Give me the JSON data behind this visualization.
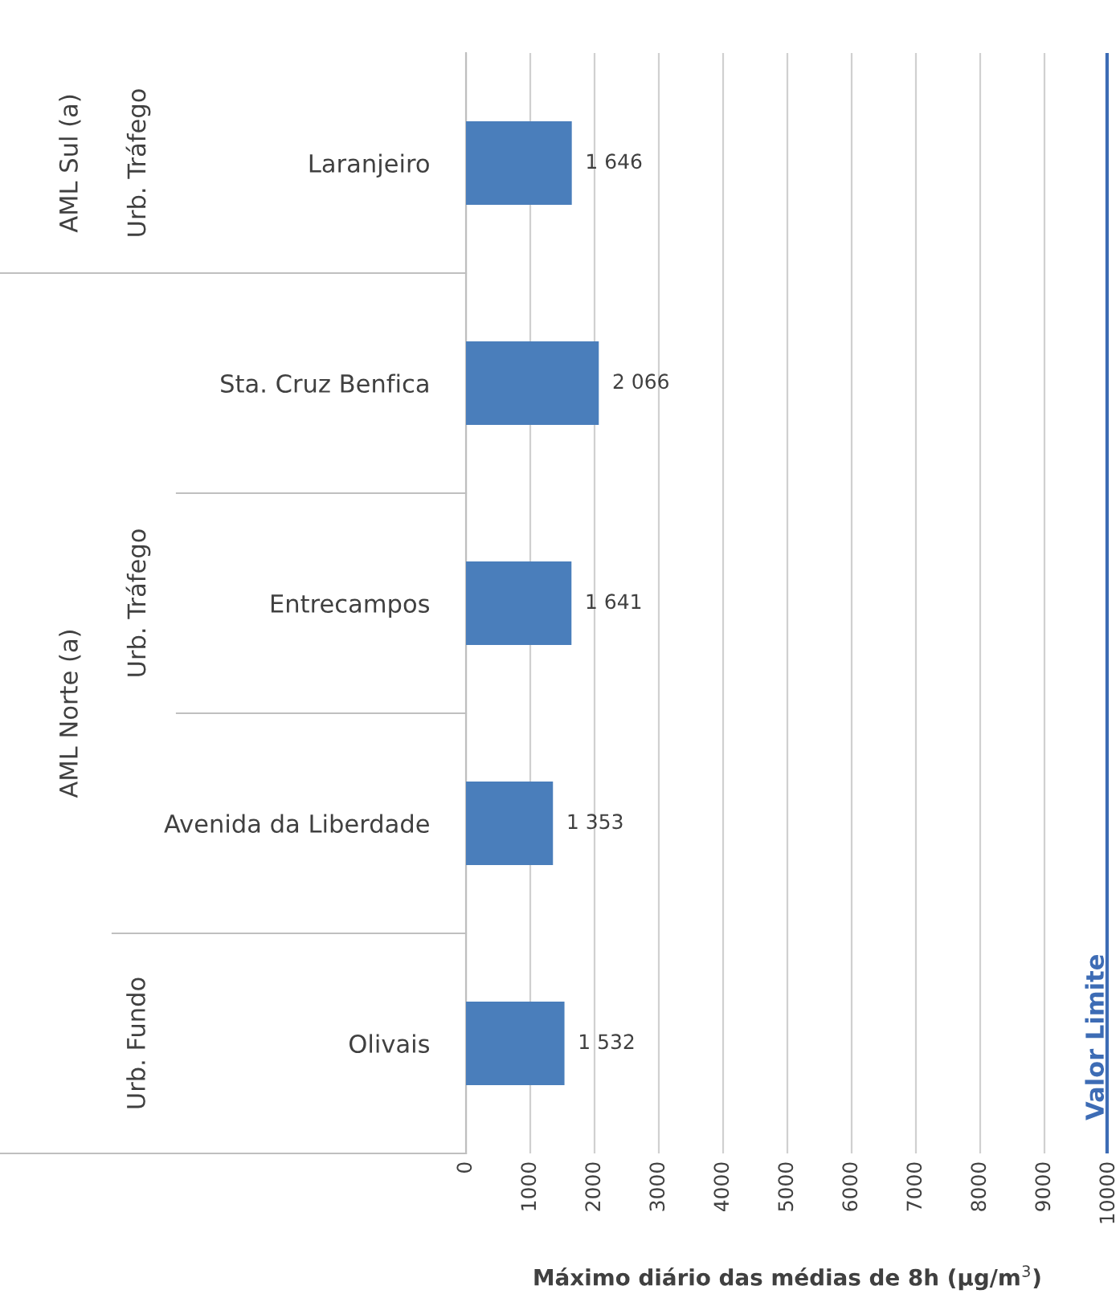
{
  "chart_data": {
    "type": "bar",
    "orientation": "horizontal",
    "categories": [
      "Laranjeiro",
      "Sta. Cruz Benfica",
      "Entrecampos",
      "Avenida da Liberdade",
      "Olivais"
    ],
    "values": [
      1646,
      2066,
      1641,
      1353,
      1532
    ],
    "value_labels": [
      "1 646",
      "2 066",
      "1 641",
      "1 353",
      "1 532"
    ],
    "color": "#4a7ebb",
    "xlim": [
      0,
      10000
    ],
    "xticks": [
      0,
      1000,
      2000,
      3000,
      4000,
      5000,
      6000,
      7000,
      8000,
      9000,
      10000
    ],
    "xlabel": "Máximo diário das médias de 8h (µg/m$^{3}$)",
    "grid": "x",
    "ref_lines": [
      {
        "axis": "x",
        "value": 10000,
        "label": "Valor Limite",
        "color": "#3d6cb5"
      }
    ],
    "annotations": [
      "AML Sul (a)",
      "Urb. Tráfego",
      "AML Norte (a)",
      "Urb. Tráfego",
      "Urb. Fundo"
    ]
  }
}
